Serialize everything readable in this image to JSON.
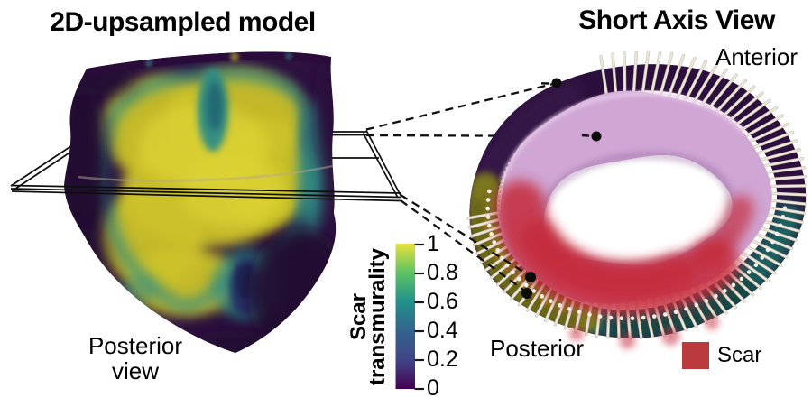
{
  "figure": {
    "left_panel": {
      "title": "2D-upsampled model",
      "view_label": [
        "Posterior",
        "view"
      ]
    },
    "right_panel": {
      "title": "Short Axis View",
      "anterior_label": "Anterior",
      "posterior_label": "Posterior",
      "scar_legend_label": "Scar"
    },
    "colorbar": {
      "label_lines": [
        "Scar",
        "transmurality"
      ],
      "tick_labels": [
        "1",
        "0.8",
        "0.6",
        "0.4",
        "0.2",
        "0"
      ],
      "range": [
        0,
        1
      ],
      "colormap": "viridis",
      "gradient_top_to_bottom": [
        "#e9e23a",
        "#5cc263",
        "#21918c",
        "#33638d",
        "#414487",
        "#440154"
      ]
    },
    "colors": {
      "scar_red": "#bb3a3d",
      "scar_cloud": "#c5293a",
      "ring_purple": "#2c0f3c",
      "ring_purple_light": "#3a1b4e",
      "ring_teal": "#1e6663",
      "ring_teal_dark": "#143f3a",
      "ring_olive": "#7f7d1e",
      "myocardium_pink": "#cfa6d4",
      "spoke_white": "#efe9dc",
      "heart_base_purple": "#2e1240",
      "heart_yellow": "#ccc22b",
      "heart_teal": "#2f8c86",
      "heart_navy": "#273569"
    }
  }
}
